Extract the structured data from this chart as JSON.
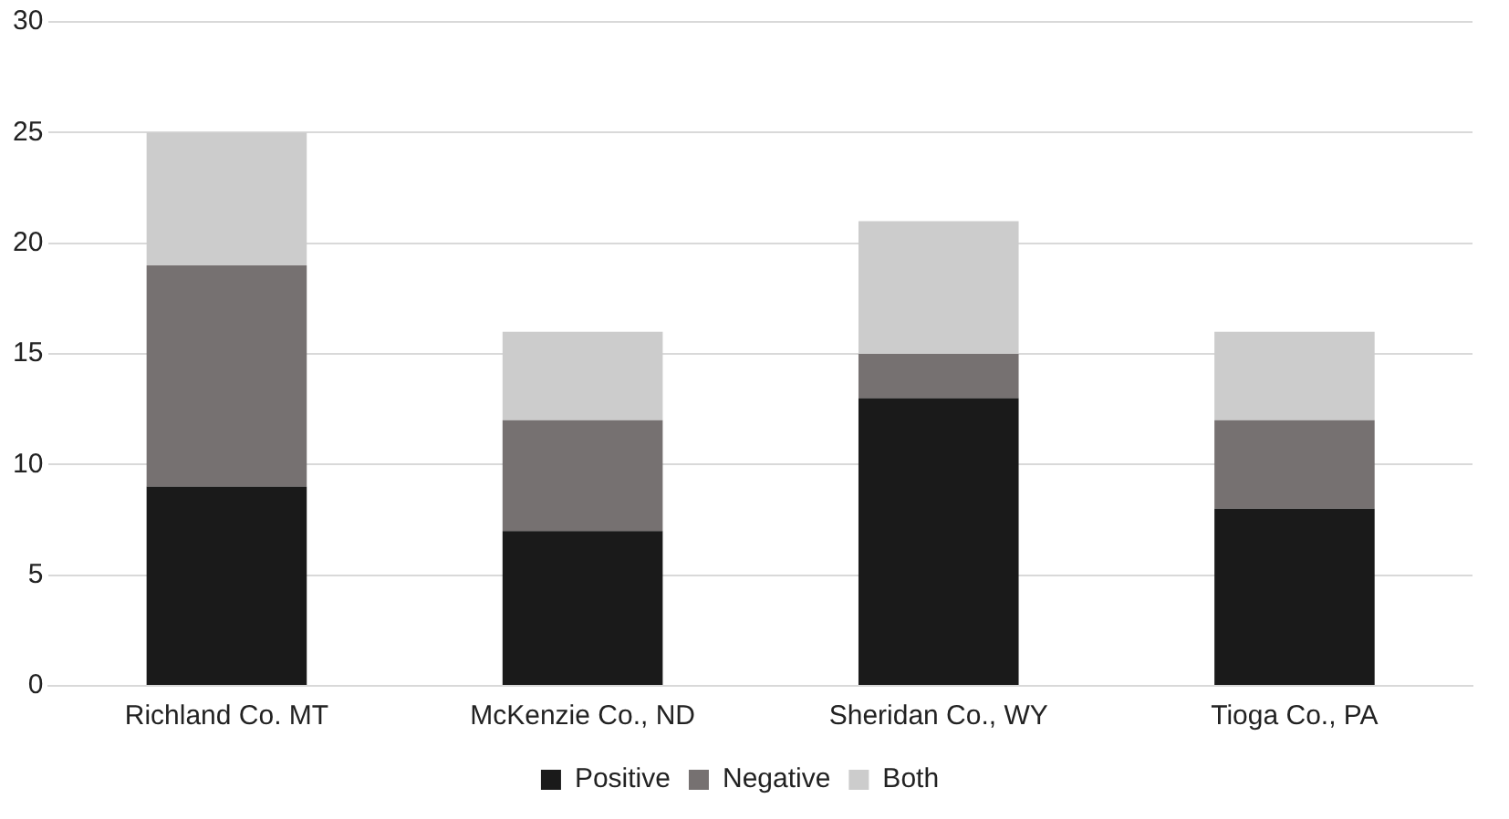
{
  "chart_data": {
    "type": "bar",
    "stacked": true,
    "categories": [
      "Richland Co. MT",
      "McKenzie Co., ND",
      "Sheridan Co., WY",
      "Tioga Co., PA"
    ],
    "series": [
      {
        "name": "Positive",
        "color": "#1a1a1a",
        "values": [
          9,
          7,
          13,
          8
        ]
      },
      {
        "name": "Negative",
        "color": "#767171",
        "values": [
          10,
          5,
          2,
          4
        ]
      },
      {
        "name": "Both",
        "color": "#cccccc",
        "values": [
          6,
          4,
          6,
          4
        ]
      }
    ],
    "ylim": [
      0,
      30
    ],
    "yticks": [
      0,
      5,
      10,
      15,
      20,
      25,
      30
    ],
    "grid": "y",
    "legend": "bottom"
  }
}
